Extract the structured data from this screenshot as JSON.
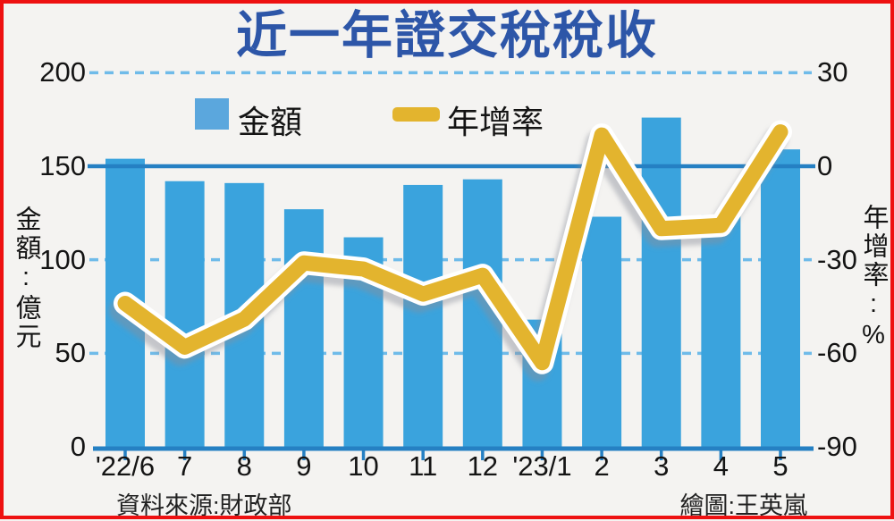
{
  "title": "近一年證交稅稅收",
  "legend": {
    "bar_label": "金額",
    "line_label": "年增率"
  },
  "left_axis": {
    "title": "金額:億元",
    "ticks": [
      "200",
      "150",
      "100",
      "50",
      "0"
    ],
    "tick_values": [
      200,
      150,
      100,
      50,
      0
    ]
  },
  "right_axis": {
    "title": "年增率:%",
    "ticks": [
      "30",
      "0",
      "-30",
      "-60",
      "-90"
    ],
    "tick_values": [
      30,
      0,
      -30,
      -60,
      -90
    ]
  },
  "footer": {
    "source": "資料來源:財政部",
    "credit": "繪圖:王英嵐"
  },
  "colors": {
    "bar": "#3aa3dd",
    "line": "#e3b42e",
    "line_outline": "#ffffff",
    "line_shadow": "#8a8f98",
    "axis_solid": "#2580c3",
    "grid_dashed": "#6fbbe9",
    "title": "#2d56a8",
    "border": "#ee1111",
    "background": "#f4f3f1",
    "text": "#141414"
  },
  "chart_data": {
    "type": "combo",
    "categories": [
      "'22/6",
      "7",
      "8",
      "9",
      "10",
      "11",
      "12",
      "'23/1",
      "2",
      "3",
      "4",
      "5"
    ],
    "series": [
      {
        "name": "金額",
        "type": "bar",
        "axis": "left",
        "unit": "億元",
        "values": [
          154,
          142,
          141,
          127,
          112,
          140,
          143,
          68,
          123,
          176,
          124,
          159
        ]
      },
      {
        "name": "年增率",
        "type": "line",
        "axis": "right",
        "unit": "%",
        "values": [
          -44,
          -58,
          -49,
          -31,
          -33,
          -41,
          -35,
          -63,
          10,
          -20,
          -19,
          11
        ]
      }
    ],
    "left_ylim": [
      0,
      200
    ],
    "right_ylim": [
      -90,
      30
    ],
    "gridlines": {
      "dashed_at_left_values": [
        200,
        100,
        50
      ],
      "solid_at_left_values": [
        150
      ],
      "baseline_left_value": 0
    },
    "legend_position": "top-inside",
    "grid": "horizontal-only"
  }
}
